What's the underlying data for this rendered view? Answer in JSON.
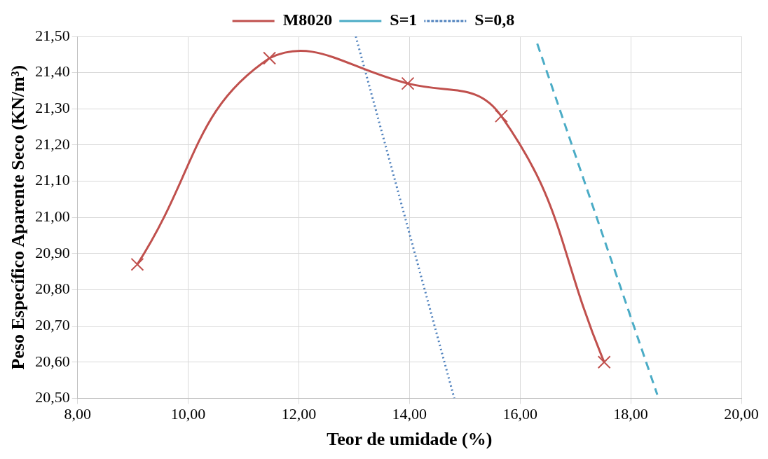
{
  "chart_data": {
    "type": "line",
    "xlabel": "Teor de umidade (%)",
    "ylabel": "Peso Específico Aparente Seco (KN/m³)",
    "xlim": [
      8,
      20
    ],
    "xticks": [
      {
        "value": 8,
        "label": "8,00"
      },
      {
        "value": 10,
        "label": "10,00"
      },
      {
        "value": 12,
        "label": "12,00"
      },
      {
        "value": 14,
        "label": "14,00"
      },
      {
        "value": 16,
        "label": "16,00"
      },
      {
        "value": 18,
        "label": "18,00"
      },
      {
        "value": 20,
        "label": "20,00"
      }
    ],
    "ylim": [
      20.5,
      21.5
    ],
    "yticks": [
      {
        "value": 20.5,
        "label": "20,50"
      },
      {
        "value": 20.6,
        "label": "20,60"
      },
      {
        "value": 20.7,
        "label": "20,70"
      },
      {
        "value": 20.8,
        "label": "20,80"
      },
      {
        "value": 20.9,
        "label": "20,90"
      },
      {
        "value": 21,
        "label": "21,00"
      },
      {
        "value": 21.1,
        "label": "21,10"
      },
      {
        "value": 21.2,
        "label": "21,20"
      },
      {
        "value": 21.3,
        "label": "21,30"
      },
      {
        "value": 21.4,
        "label": "21,40"
      },
      {
        "value": 21.5,
        "label": "21,50"
      }
    ],
    "grid": true,
    "legend": "top",
    "series": [
      {
        "name": "M8020",
        "color": "#c0504d",
        "x": [
          9.08,
          11.47,
          13.97,
          15.66,
          17.52
        ],
        "values": [
          20.87,
          21.44,
          21.37,
          21.28,
          20.6
        ],
        "marker": "cross",
        "line_style": "solid"
      },
      {
        "name": "S=1",
        "color": "#4bacc6",
        "x": [
          16.31,
          18.48
        ],
        "values": [
          21.48,
          20.51
        ],
        "marker": "none",
        "line_style": "dashed"
      },
      {
        "name": "S=0,8",
        "color": "#4f81bd",
        "x": [
          13.03,
          14.81
        ],
        "values": [
          21.5,
          20.5
        ],
        "marker": "none",
        "line_style": "dotted"
      }
    ]
  }
}
